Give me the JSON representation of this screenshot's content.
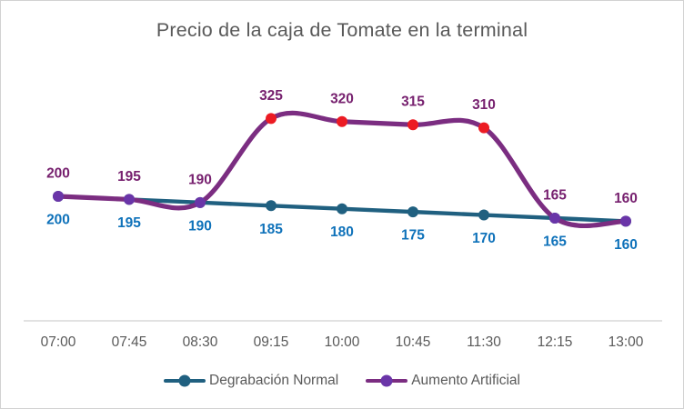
{
  "chart_data": {
    "type": "line",
    "title": "Precio de la caja de Tomate en la terminal",
    "x": [
      "07:00",
      "07:45",
      "08:30",
      "09:15",
      "10:00",
      "10:45",
      "11:30",
      "12:15",
      "13:00"
    ],
    "series": [
      {
        "name": "Degrabación Normal",
        "values": [
          200,
          195,
          190,
          185,
          180,
          175,
          170,
          165,
          160
        ],
        "color": "#206080",
        "marker_color": "#206080",
        "label_color": "#0F72BA",
        "label_position": "below",
        "smooth": true
      },
      {
        "name": "Aumento Artificial",
        "values": [
          200,
          195,
          190,
          325,
          320,
          315,
          310,
          165,
          160
        ],
        "color": "#7B2D81",
        "marker_color": "#6A35A8",
        "highlight_marker_color": "#EC1B23",
        "highlight_indices": [
          3,
          4,
          5,
          6
        ],
        "label_color": "#77216F",
        "label_position": "above",
        "smooth": true
      }
    ],
    "ylim": [
      0,
      350
    ],
    "grid": false,
    "legend_position": "bottom",
    "axis_line_color": "#D9D9D9",
    "text_color": "#595959"
  }
}
